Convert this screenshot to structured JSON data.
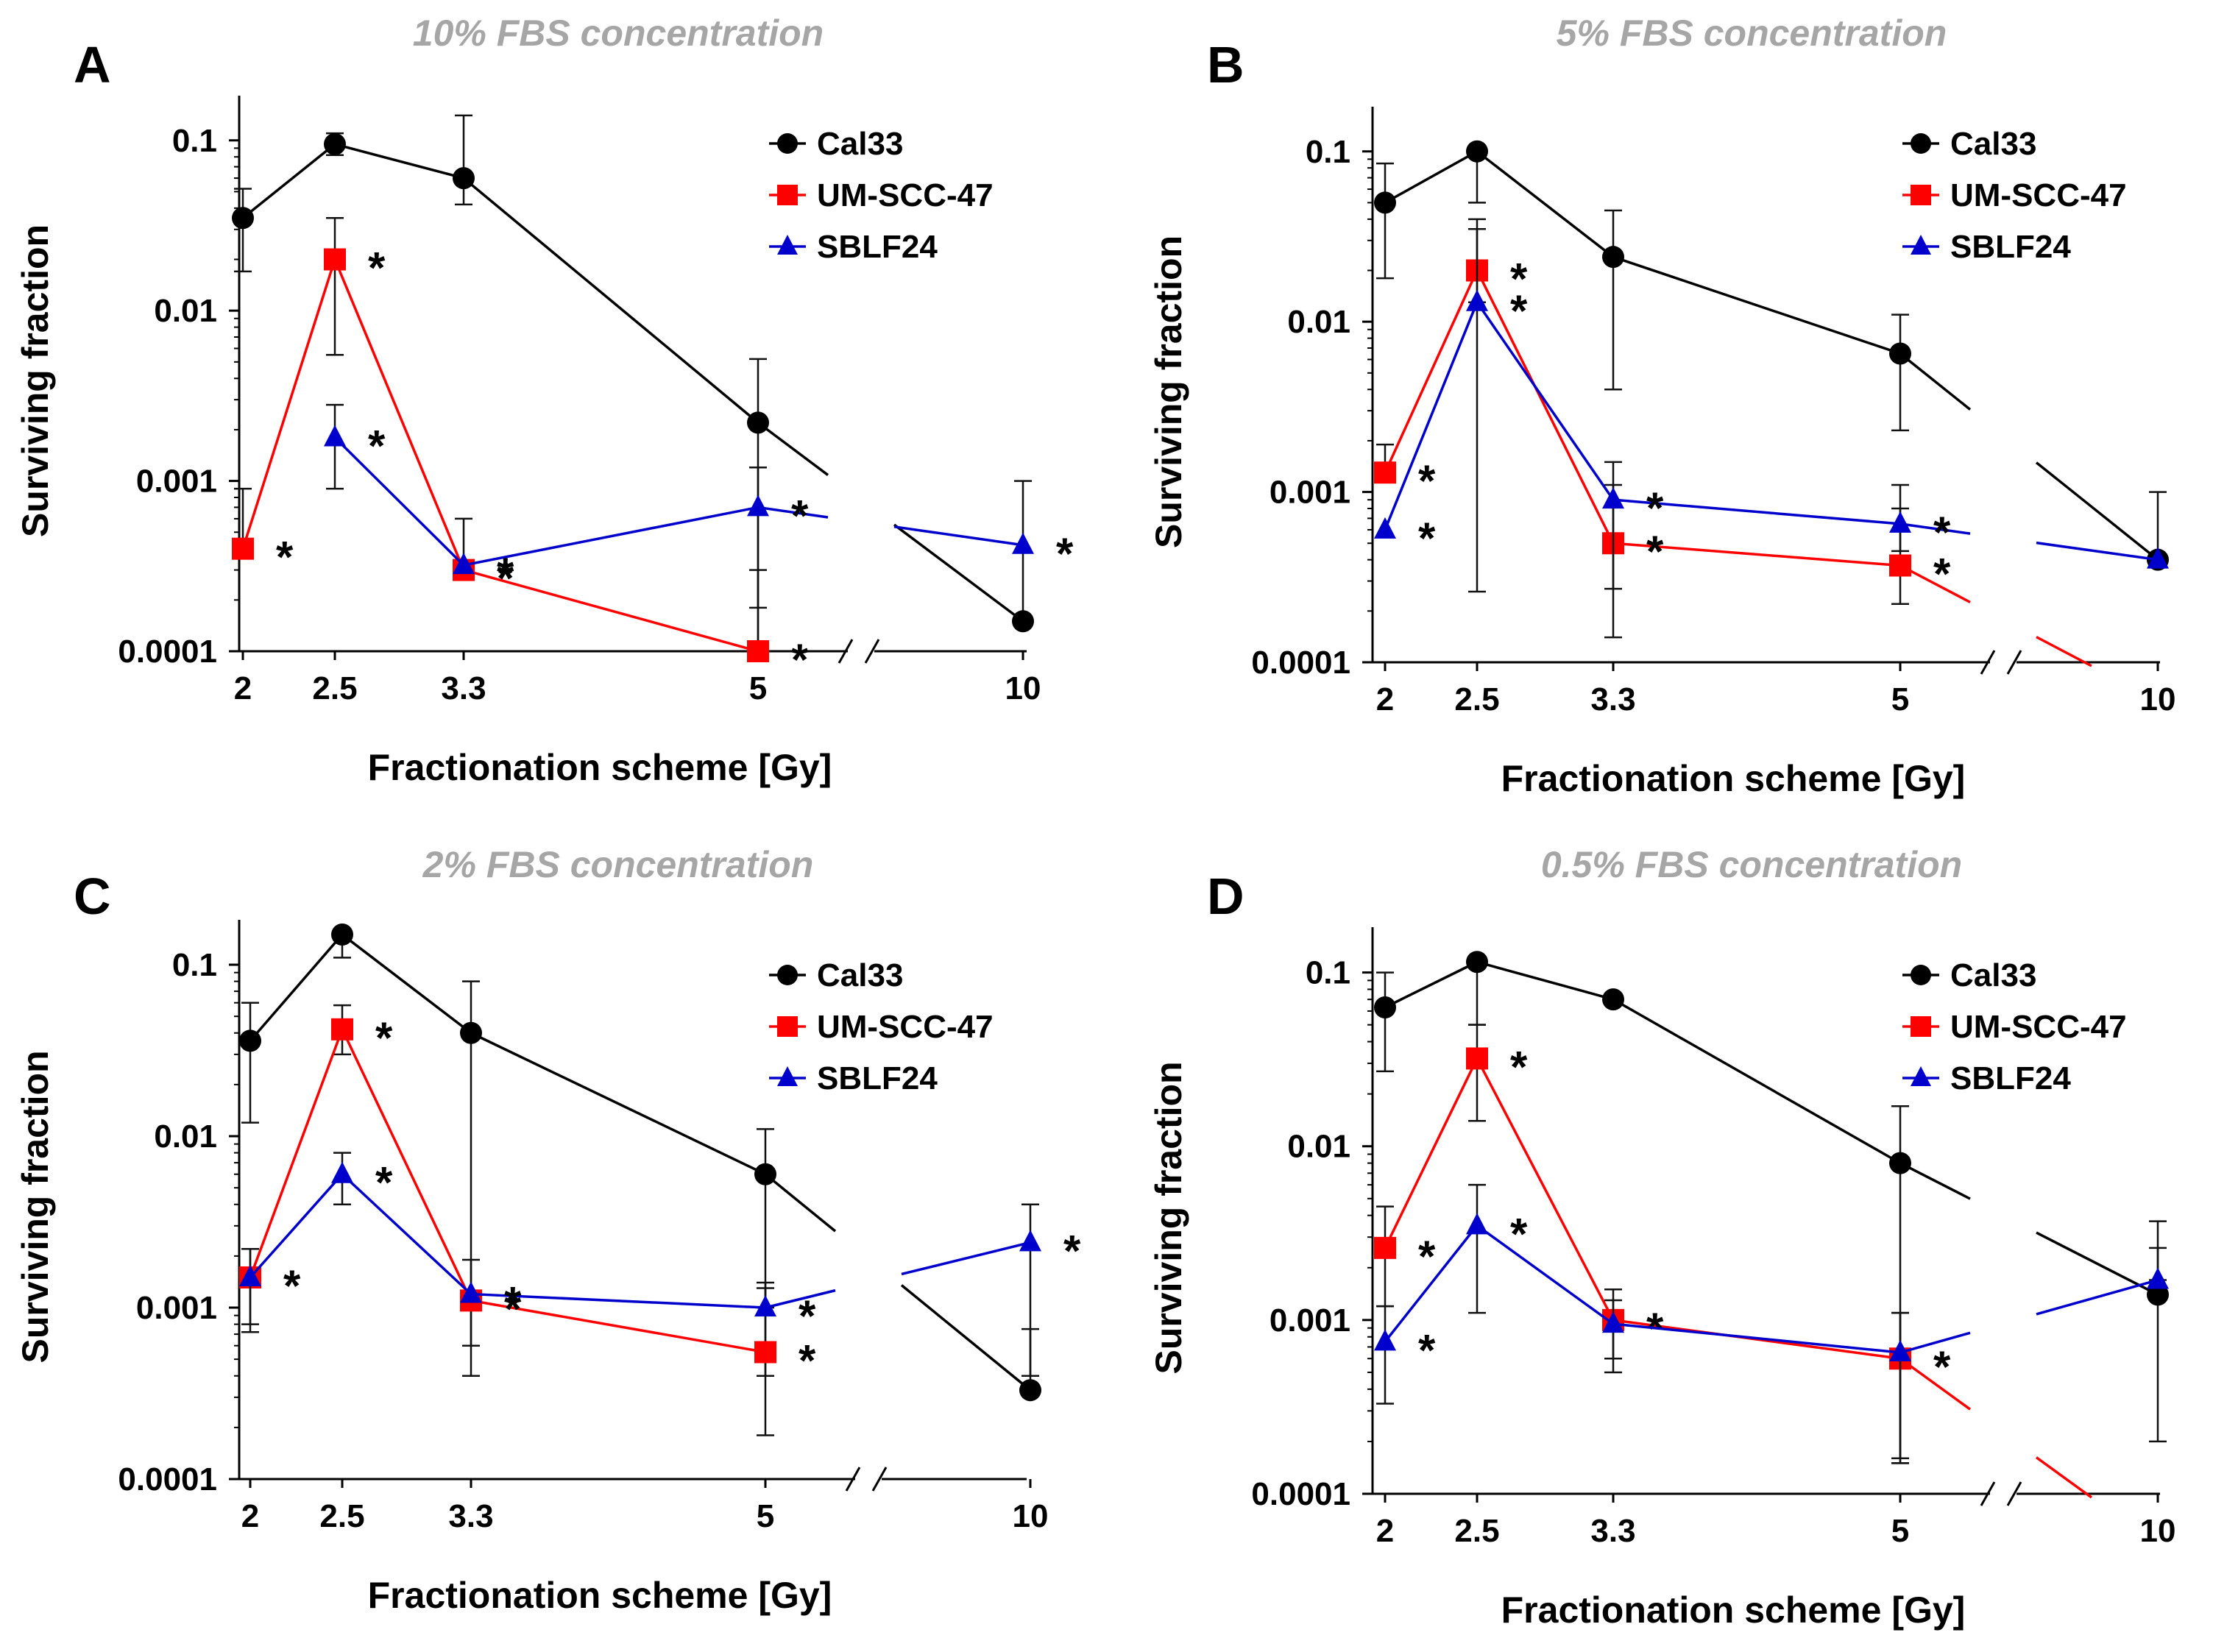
{
  "chart_data": [
    {
      "panel": "A",
      "type": "line",
      "title": "10% FBS concentration",
      "xlabel": "Fractionation scheme [Gy]",
      "ylabel": "Surviving fraction",
      "categories": [
        "2",
        "2.5",
        "3.3",
        "5",
        "10"
      ],
      "y_scale": "log",
      "ylim": [
        0.0001,
        0.15
      ],
      "y_ticks": [
        "0.0001",
        "0.001",
        "0.01",
        "0.1"
      ],
      "axis_break": "between 5 and 10",
      "legend": [
        "Cal33",
        "UM-SCC-47",
        "SBLF24"
      ],
      "significance_marker": "*",
      "series": [
        {
          "name": "Cal33",
          "color": "#000000",
          "marker": "circle",
          "x": [
            "2",
            "2.5",
            "3.3",
            "5",
            "10"
          ],
          "values": [
            0.035,
            0.095,
            0.06,
            0.0022,
            0.00015
          ],
          "err_low": [
            0.017,
            0.082,
            0.042,
            0.0001,
            0.00015
          ],
          "err_high": [
            0.052,
            0.11,
            0.14,
            0.0052,
            0.001
          ],
          "significant": [
            false,
            false,
            false,
            false,
            false
          ]
        },
        {
          "name": "UM-SCC-47",
          "color": "#ff0000",
          "marker": "square",
          "x": [
            "2",
            "2.5",
            "3.3",
            "5"
          ],
          "values": [
            0.0004,
            0.02,
            0.0003,
            0.0001
          ],
          "err_low": [
            0.0004,
            0.0055,
            0.0003,
            0.0001
          ],
          "err_high": [
            0.0009,
            0.035,
            0.0006,
            0.0003
          ],
          "significant": [
            true,
            true,
            true,
            true
          ]
        },
        {
          "name": "SBLF24",
          "color": "#0000cc",
          "marker": "triangle",
          "x": [
            "2.5",
            "3.3",
            "5",
            "10"
          ],
          "values": [
            0.0018,
            0.00032,
            0.0007,
            0.00042
          ],
          "err_low": [
            0.0009,
            0.00032,
            0.00018,
            0.00042
          ],
          "err_high": [
            0.0028,
            0.00032,
            0.0012,
            0.00042
          ],
          "significant": [
            true,
            true,
            true,
            true
          ]
        }
      ]
    },
    {
      "panel": "B",
      "type": "line",
      "title": "5% FBS concentration",
      "xlabel": "Fractionation scheme [Gy]",
      "ylabel": "Surviving fraction",
      "categories": [
        "2",
        "2.5",
        "3.3",
        "5",
        "10"
      ],
      "y_scale": "log",
      "ylim": [
        0.0001,
        0.15
      ],
      "y_ticks": [
        "0.0001",
        "0.001",
        "0.01",
        "0.1"
      ],
      "axis_break": "between 5 and 10",
      "legend": [
        "Cal33",
        "UM-SCC-47",
        "SBLF24"
      ],
      "significance_marker": "*",
      "series": [
        {
          "name": "Cal33",
          "color": "#000000",
          "marker": "circle",
          "x": [
            "2",
            "2.5",
            "3.3",
            "5",
            "10"
          ],
          "values": [
            0.05,
            0.1,
            0.024,
            0.0065,
            0.0004
          ],
          "err_low": [
            0.018,
            0.05,
            0.004,
            0.0023,
            0.0004
          ],
          "err_high": [
            0.085,
            0.1,
            0.045,
            0.011,
            0.001
          ],
          "significant": [
            false,
            false,
            false,
            false,
            false
          ]
        },
        {
          "name": "UM-SCC-47",
          "color": "#ff0000",
          "marker": "square",
          "x": [
            "2",
            "2.5",
            "3.3",
            "5"
          ],
          "values": [
            0.0013,
            0.02,
            0.0005,
            0.00037
          ],
          "err_low": [
            0.0013,
            0.00026,
            0.00014,
            0.00022
          ],
          "err_high": [
            0.0019,
            0.04,
            0.0011,
            0.0008
          ],
          "significant": [
            true,
            true,
            true,
            true
          ]
        },
        {
          "name": "SBLF24",
          "color": "#0000cc",
          "marker": "triangle",
          "x": [
            "2",
            "2.5",
            "3.3",
            "5",
            "10"
          ],
          "values": [
            0.0006,
            0.013,
            0.0009,
            0.00065,
            0.0004
          ],
          "err_low": [
            0.0006,
            0.013,
            0.00027,
            0.00045,
            0.0004
          ],
          "err_high": [
            0.0006,
            0.035,
            0.0015,
            0.0011,
            0.0004
          ],
          "significant": [
            true,
            true,
            true,
            true,
            false
          ]
        }
      ]
    },
    {
      "panel": "C",
      "type": "line",
      "title": "2% FBS concentration",
      "xlabel": "Fractionation scheme [Gy]",
      "ylabel": "Surviving fraction",
      "categories": [
        "2",
        "2.5",
        "3.3",
        "5",
        "10"
      ],
      "y_scale": "log",
      "ylim": [
        0.0001,
        0.15
      ],
      "y_ticks": [
        "0.0001",
        "0.001",
        "0.01",
        "0.1"
      ],
      "axis_break": "between 5 and 10",
      "legend": [
        "Cal33",
        "UM-SCC-47",
        "SBLF24"
      ],
      "significance_marker": "*",
      "series": [
        {
          "name": "Cal33",
          "color": "#000000",
          "marker": "circle",
          "x": [
            "2",
            "2.5",
            "3.3",
            "5",
            "10"
          ],
          "values": [
            0.036,
            0.15,
            0.04,
            0.006,
            0.00033
          ],
          "err_low": [
            0.012,
            0.11,
            0.0004,
            0.0004,
            0.00033
          ],
          "err_high": [
            0.06,
            0.15,
            0.08,
            0.011,
            0.00075
          ],
          "significant": [
            false,
            false,
            false,
            false,
            false
          ]
        },
        {
          "name": "UM-SCC-47",
          "color": "#ff0000",
          "marker": "square",
          "x": [
            "2",
            "2.5",
            "3.3",
            "5"
          ],
          "values": [
            0.0015,
            0.042,
            0.0011,
            0.00055
          ],
          "err_low": [
            0.00072,
            0.03,
            0.0006,
            0.00018
          ],
          "err_high": [
            0.0022,
            0.058,
            0.0019,
            0.0013
          ],
          "significant": [
            true,
            true,
            true,
            true
          ]
        },
        {
          "name": "SBLF24",
          "color": "#0000cc",
          "marker": "triangle",
          "x": [
            "2",
            "2.5",
            "3.3",
            "5",
            "10"
          ],
          "values": [
            0.0015,
            0.006,
            0.0012,
            0.001,
            0.0024
          ],
          "err_low": [
            0.0008,
            0.004,
            0.0012,
            0.001,
            0.0004
          ],
          "err_high": [
            0.0022,
            0.008,
            0.0012,
            0.0014,
            0.004
          ],
          "significant": [
            false,
            true,
            true,
            true,
            true
          ]
        }
      ]
    },
    {
      "panel": "D",
      "type": "line",
      "title": "0.5% FBS concentration",
      "xlabel": "Fractionation scheme [Gy]",
      "ylabel": "Surviving fraction",
      "categories": [
        "2",
        "2.5",
        "3.3",
        "5",
        "10"
      ],
      "y_scale": "log",
      "ylim": [
        0.0001,
        0.15
      ],
      "y_ticks": [
        "0.0001",
        "0.001",
        "0.01",
        "0.1"
      ],
      "axis_break": "between 5 and 10",
      "legend": [
        "Cal33",
        "UM-SCC-47",
        "SBLF24"
      ],
      "significance_marker": "*",
      "series": [
        {
          "name": "Cal33",
          "color": "#000000",
          "marker": "circle",
          "x": [
            "2",
            "2.5",
            "3.3",
            "5",
            "10"
          ],
          "values": [
            0.063,
            0.115,
            0.07,
            0.008,
            0.0014
          ],
          "err_low": [
            0.027,
            0.05,
            0.07,
            0.00015,
            0.0002
          ],
          "err_high": [
            0.1,
            0.115,
            0.07,
            0.017,
            0.0037
          ],
          "significant": [
            false,
            false,
            false,
            false,
            false
          ]
        },
        {
          "name": "UM-SCC-47",
          "color": "#ff0000",
          "marker": "square",
          "x": [
            "2",
            "2.5",
            "3.3",
            "5"
          ],
          "values": [
            0.0026,
            0.032,
            0.001,
            0.0006
          ],
          "err_low": [
            0.0012,
            0.014,
            0.0005,
            0.00015
          ],
          "err_high": [
            0.0045,
            0.05,
            0.0015,
            0.0011
          ],
          "significant": [
            true,
            true,
            true,
            true
          ]
        },
        {
          "name": "SBLF24",
          "color": "#0000cc",
          "marker": "triangle",
          "x": [
            "2",
            "2.5",
            "3.3",
            "5",
            "10"
          ],
          "values": [
            0.00075,
            0.0035,
            0.00095,
            0.00065,
            0.0017
          ],
          "err_low": [
            0.00033,
            0.0011,
            0.0006,
            0.00016,
            0.0017
          ],
          "err_high": [
            0.0012,
            0.006,
            0.0013,
            0.0011,
            0.0026
          ],
          "significant": [
            true,
            true,
            false,
            false,
            false
          ]
        }
      ]
    }
  ]
}
